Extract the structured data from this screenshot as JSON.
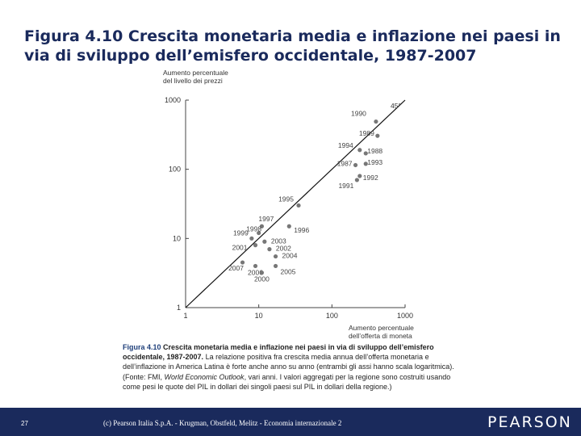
{
  "slide": {
    "title_prefix": "Figura 4.10 ",
    "title_bold": "Crescita monetaria media e inflazione nei paesi in via di sviluppo dell’emisfero occidentale, 1987-2007"
  },
  "chart_data": {
    "type": "scatter",
    "title": "",
    "xlabel_lines": [
      "Aumento percentuale",
      "dell’offerta di moneta"
    ],
    "ylabel_lines": [
      "Aumento percentuale",
      "del livello dei prezzi"
    ],
    "xscale": "log",
    "yscale": "log",
    "xlim": [
      1,
      1000
    ],
    "ylim": [
      1,
      1000
    ],
    "xticks": [
      1,
      10,
      100,
      1000
    ],
    "yticks": [
      1,
      10,
      100,
      1000
    ],
    "xtick_labels": [
      "1",
      "10",
      "100",
      "1000"
    ],
    "ytick_labels": [
      "1",
      "10",
      "100",
      "1000"
    ],
    "grid": false,
    "reference_line_label": "45°",
    "points": [
      {
        "label": "1990",
        "x": 400,
        "y": 490
      },
      {
        "label": "1989",
        "x": 420,
        "y": 305
      },
      {
        "label": "1994",
        "x": 240,
        "y": 190
      },
      {
        "label": "1988",
        "x": 290,
        "y": 170
      },
      {
        "label": "1993",
        "x": 290,
        "y": 120
      },
      {
        "label": "1987",
        "x": 210,
        "y": 115
      },
      {
        "label": "1992",
        "x": 240,
        "y": 80
      },
      {
        "label": "1991",
        "x": 220,
        "y": 70
      },
      {
        "label": "1995",
        "x": 35,
        "y": 30
      },
      {
        "label": "1997",
        "x": 11,
        "y": 15
      },
      {
        "label": "1996",
        "x": 26,
        "y": 15
      },
      {
        "label": "1998",
        "x": 10,
        "y": 12
      },
      {
        "label": "1999",
        "x": 8,
        "y": 10
      },
      {
        "label": "2001",
        "x": 9,
        "y": 8
      },
      {
        "label": "2003",
        "x": 12,
        "y": 9
      },
      {
        "label": "2002",
        "x": 14,
        "y": 7
      },
      {
        "label": "2004",
        "x": 17,
        "y": 5.5
      },
      {
        "label": "2007",
        "x": 6,
        "y": 4.5
      },
      {
        "label": "2006",
        "x": 9,
        "y": 4
      },
      {
        "label": "2005",
        "x": 17,
        "y": 4
      },
      {
        "label": "2000",
        "x": 11,
        "y": 3.2
      }
    ]
  },
  "caption": {
    "label": "Figura 4.10",
    "title": "Crescita monetaria media e inflazione nei paesi in via di sviluppo dell’emisfero occidentale, 1987-2007.",
    "body_before_italic": "La relazione positiva fra crescita media annua dell’offerta monetaria e dell’inflazione in America Latina è forte anche anno su anno (entrambi gli assi hanno scala logaritmica). (Fonte: FMI, ",
    "italic": "World Economic Outlook",
    "body_after_italic": ", vari anni. I valori aggregati per la regione sono costruiti usando come pesi le quote del PIL in dollari dei singoli paesi sul PIL in dollari della regione.)"
  },
  "footer": {
    "page": "27",
    "text": "(c) Pearson Italia S.p.A. - Krugman, Obstfeld, Melitz - Economia internazionale 2",
    "brand": "PEARSON"
  },
  "colors": {
    "title": "#1a2a5c",
    "footer_bg": "#1a2a5c",
    "caption_label": "#1f3f7a",
    "point": "#777777",
    "axis": "#444444"
  }
}
